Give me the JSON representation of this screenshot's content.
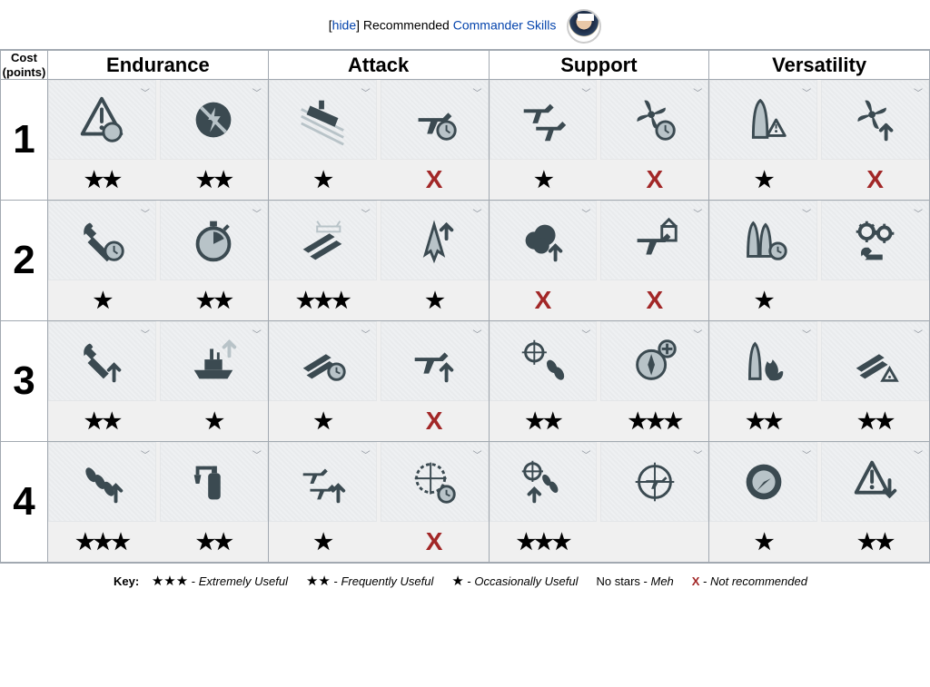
{
  "header": {
    "hide_label": "hide",
    "recommended_label": "Recommended",
    "link_text": "Commander Skills"
  },
  "columns": {
    "cost_label_line1": "Cost",
    "cost_label_line2": "(points)",
    "categories": [
      "Endurance",
      "Attack",
      "Support",
      "Versatility"
    ]
  },
  "colors": {
    "icon_dark": "#3b4a51",
    "icon_light": "#b8c3c8",
    "icon_bg": "#eef0f2",
    "x_color": "#a22727",
    "border": "#a2a9b1",
    "link": "#0645ad"
  },
  "rows": [
    {
      "cost": "1",
      "cells": [
        {
          "skills": [
            {
              "icon": "warn-circle",
              "rating": "stars",
              "value": 2
            },
            {
              "icon": "no-bolt",
              "rating": "stars",
              "value": 2
            }
          ]
        },
        {
          "skills": [
            {
              "icon": "ship-lines",
              "rating": "stars",
              "value": 1
            },
            {
              "icon": "plane-clock",
              "rating": "x",
              "value": 0
            }
          ]
        },
        {
          "skills": [
            {
              "icon": "planes-cross",
              "rating": "stars",
              "value": 1
            },
            {
              "icon": "prop-clock",
              "rating": "x",
              "value": 0
            }
          ]
        },
        {
          "skills": [
            {
              "icon": "shell-warn",
              "rating": "stars",
              "value": 1
            },
            {
              "icon": "prop-up",
              "rating": "x",
              "value": 0
            }
          ]
        }
      ]
    },
    {
      "cost": "2",
      "cells": [
        {
          "skills": [
            {
              "icon": "wrench-clock",
              "rating": "stars",
              "value": 1
            },
            {
              "icon": "stopwatch",
              "rating": "stars",
              "value": 2
            }
          ]
        },
        {
          "skills": [
            {
              "icon": "torpedoes",
              "rating": "stars",
              "value": 3
            },
            {
              "icon": "rocket-up",
              "rating": "stars",
              "value": 1
            }
          ]
        },
        {
          "skills": [
            {
              "icon": "smoke-up",
              "rating": "x",
              "value": 0
            },
            {
              "icon": "plane-home",
              "rating": "x",
              "value": 0
            }
          ]
        },
        {
          "skills": [
            {
              "icon": "shells-clock",
              "rating": "stars",
              "value": 1
            },
            {
              "icon": "gears-wrench",
              "rating": "none",
              "value": 0
            }
          ]
        }
      ]
    },
    {
      "cost": "3",
      "cells": [
        {
          "skills": [
            {
              "icon": "wrench-up",
              "rating": "stars",
              "value": 2
            },
            {
              "icon": "ship-up",
              "rating": "stars",
              "value": 1
            }
          ]
        },
        {
          "skills": [
            {
              "icon": "torp-clock",
              "rating": "stars",
              "value": 1
            },
            {
              "icon": "plane-up",
              "rating": "x",
              "value": 0
            }
          ]
        },
        {
          "skills": [
            {
              "icon": "target-bombs",
              "rating": "stars",
              "value": 2
            },
            {
              "icon": "compass-plus",
              "rating": "stars",
              "value": 3
            }
          ]
        },
        {
          "skills": [
            {
              "icon": "shell-fire",
              "rating": "stars",
              "value": 2
            },
            {
              "icon": "torp-warn",
              "rating": "stars",
              "value": 2
            }
          ]
        }
      ]
    },
    {
      "cost": "4",
      "cells": [
        {
          "skills": [
            {
              "icon": "bombs-up",
              "rating": "stars",
              "value": 3
            },
            {
              "icon": "extinguisher",
              "rating": "stars",
              "value": 2
            }
          ]
        },
        {
          "skills": [
            {
              "icon": "planes-up",
              "rating": "stars",
              "value": 1
            },
            {
              "icon": "reticle-clock",
              "rating": "x",
              "value": 0
            }
          ]
        },
        {
          "skills": [
            {
              "icon": "target-bombs-up",
              "rating": "stars",
              "value": 3
            },
            {
              "icon": "plane-target",
              "rating": "none",
              "value": 0
            }
          ]
        },
        {
          "skills": [
            {
              "icon": "radar-ring",
              "rating": "stars",
              "value": 1
            },
            {
              "icon": "warn-down",
              "rating": "stars",
              "value": 2
            }
          ]
        }
      ]
    }
  ],
  "legend": {
    "key_label": "Key:",
    "entries": [
      {
        "symbol": "★★★",
        "kind": "stars",
        "text": "Extremely Useful"
      },
      {
        "symbol": "★★",
        "kind": "stars",
        "text": "Frequently Useful"
      },
      {
        "symbol": "★",
        "kind": "stars",
        "text": "Occasionally Useful"
      },
      {
        "symbol": "No stars",
        "kind": "plain",
        "text": "Meh"
      },
      {
        "symbol": "X",
        "kind": "x",
        "text": "Not recommended"
      }
    ]
  }
}
